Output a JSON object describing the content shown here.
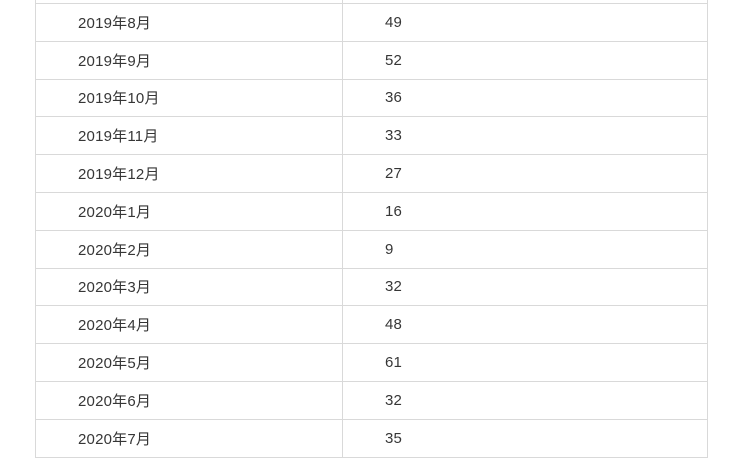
{
  "chart_data": {
    "type": "table",
    "categories": [
      "2019年8月",
      "2019年9月",
      "2019年10月",
      "2019年11月",
      "2019年12月",
      "2020年1月",
      "2020年2月",
      "2020年3月",
      "2020年4月",
      "2020年5月",
      "2020年6月",
      "2020年7月"
    ],
    "values": [
      49,
      52,
      36,
      33,
      27,
      16,
      9,
      32,
      48,
      61,
      32,
      35
    ],
    "title": "",
    "notes": "no header row visible; table cropped at top edge"
  },
  "style": {
    "border_color": "#d9d9d9",
    "text_color": "#363636",
    "background_color": "#ffffff"
  },
  "table": {
    "rows": [
      {
        "month": "2019年8月",
        "value": "49"
      },
      {
        "month": "2019年9月",
        "value": "52"
      },
      {
        "month": "2019年10月",
        "value": "36"
      },
      {
        "month": "2019年11月",
        "value": "33"
      },
      {
        "month": "2019年12月",
        "value": "27"
      },
      {
        "month": "2020年1月",
        "value": "16"
      },
      {
        "month": "2020年2月",
        "value": "9"
      },
      {
        "month": "2020年3月",
        "value": "32"
      },
      {
        "month": "2020年4月",
        "value": "48"
      },
      {
        "month": "2020年5月",
        "value": "61"
      },
      {
        "month": "2020年6月",
        "value": "32"
      },
      {
        "month": "2020年7月",
        "value": "35"
      }
    ]
  }
}
